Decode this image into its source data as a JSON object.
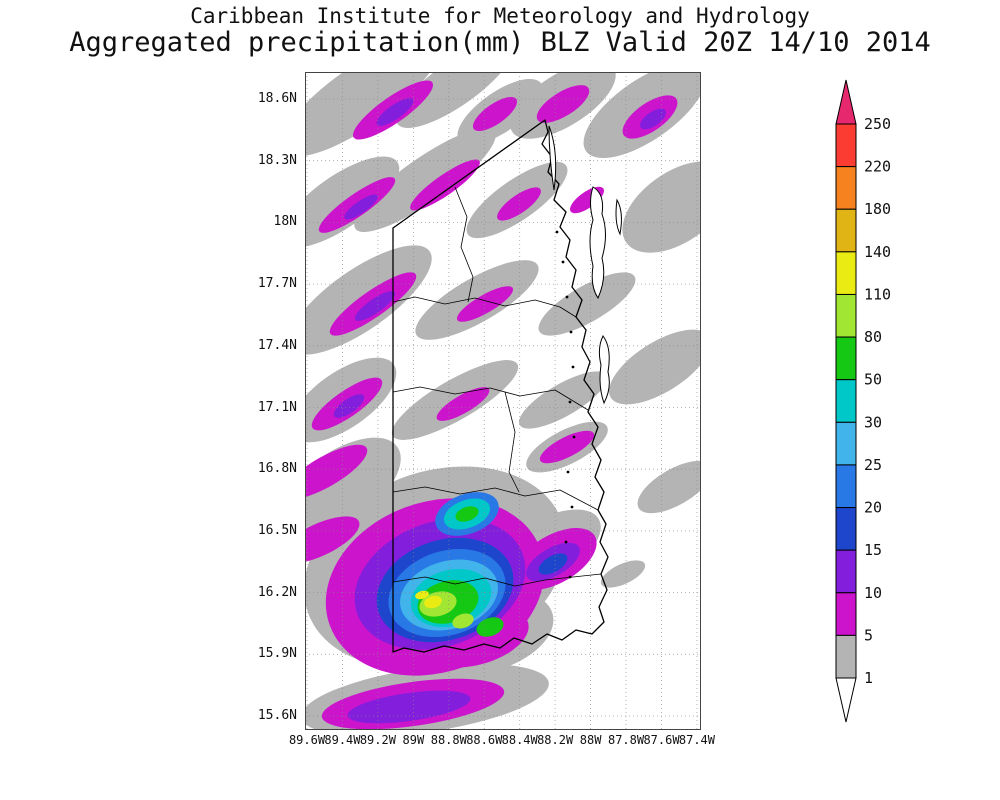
{
  "header": {
    "line1": "Caribbean Institute for Meteorology and Hydrology",
    "line2": "Aggregated precipitation(mm) BLZ Valid 20Z 14/10 2014"
  },
  "map": {
    "lat_ticks": [
      "18.6N",
      "18.3N",
      "18N",
      "17.7N",
      "17.4N",
      "17.1N",
      "16.8N",
      "16.5N",
      "16.2N",
      "15.9N",
      "15.6N"
    ],
    "lon_ticks": [
      "89.6W",
      "89.4W",
      "89.2W",
      "89W",
      "88.8W",
      "88.6W",
      "88.4W",
      "88.2W",
      "88W",
      "87.8W",
      "87.6W",
      "87.4W"
    ]
  },
  "colorbar": {
    "labels_top_to_bottom": [
      "250",
      "220",
      "180",
      "140",
      "110",
      "80",
      "50",
      "30",
      "25",
      "20",
      "15",
      "10",
      "5",
      "1"
    ],
    "segment_colors_top_to_bottom": [
      "#fa3c32",
      "#f5821e",
      "#e0b414",
      "#ebeb14",
      "#a0e632",
      "#14c814",
      "#00c8c8",
      "#41b4eb",
      "#2878e6",
      "#1e46cd",
      "#821edc",
      "#cd14cd",
      "#b4b4b4"
    ],
    "top_arrow_color": "#e6286e",
    "bottom_arrow_color": "#ffffff"
  },
  "chart_data": {
    "type": "heatmap",
    "title": "Aggregated precipitation(mm) BLZ Valid 20Z 14/10 2014",
    "source": "Caribbean Institute for Meteorology and Hydrology",
    "units": "mm",
    "region": "BLZ",
    "valid_time": "20Z 14/10 2014",
    "lat_ticks": [
      "18.6N",
      "18.3N",
      "18N",
      "17.7N",
      "17.4N",
      "17.1N",
      "16.8N",
      "16.5N",
      "16.2N",
      "15.9N",
      "15.6N"
    ],
    "lon_ticks": [
      "89.6W",
      "89.4W",
      "89.2W",
      "89W",
      "88.8W",
      "88.6W",
      "88.4W",
      "88.2W",
      "88W",
      "87.8W",
      "87.6W",
      "87.4W"
    ],
    "lat_range": [
      "15.6N",
      "18.6N"
    ],
    "lon_range": [
      "89.6W",
      "87.4W"
    ],
    "shaded_levels_mm": [
      1,
      5,
      10,
      15,
      20,
      25,
      30,
      50,
      80,
      110,
      140,
      180,
      220,
      250
    ],
    "palette_low_to_high": [
      "#b4b4b4",
      "#cd14cd",
      "#821edc",
      "#1e46cd",
      "#2878e6",
      "#41b4eb",
      "#00c8c8",
      "#14c814",
      "#a0e632",
      "#ebeb14",
      "#e0b414",
      "#f5821e",
      "#fa3c32"
    ],
    "below_min_color": "#ffffff",
    "above_max_color": "#e6286e",
    "grid": "dotted",
    "legend_position": "right",
    "observed_max_band_mm": "110-140",
    "observed_max_location": "southern Belize near 16.1N 89.1W"
  }
}
